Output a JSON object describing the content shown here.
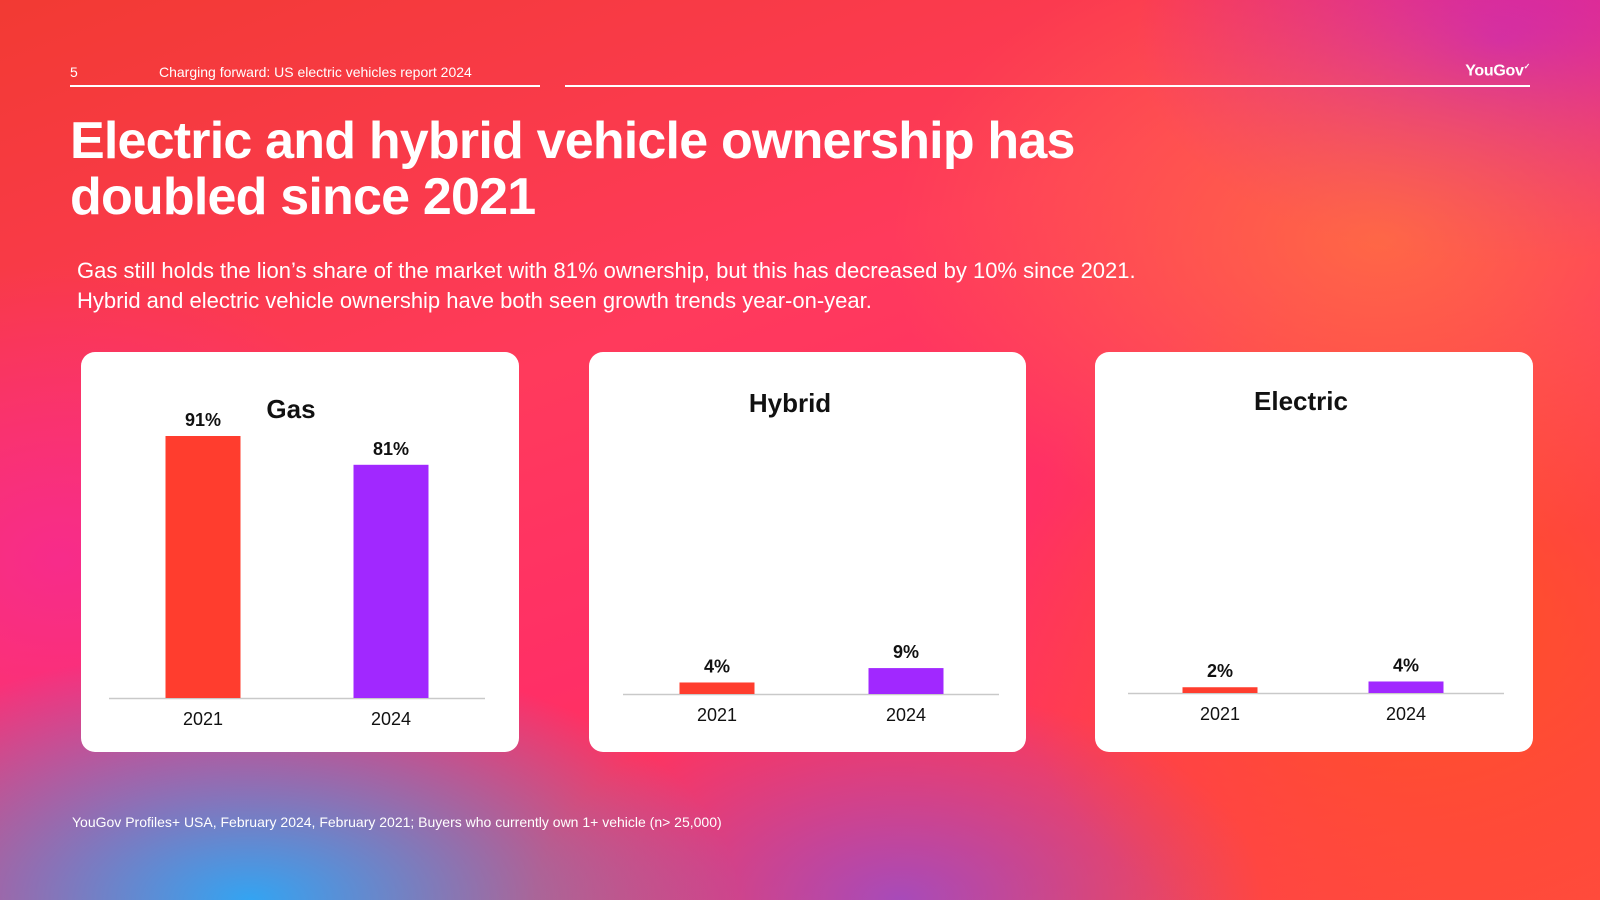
{
  "header": {
    "page_number": "5",
    "report_title": "Charging forward: US electric vehicles report 2024",
    "logo": "YouGov"
  },
  "headline": "Electric and hybrid vehicle ownership has doubled since 2021",
  "subtitle_lines": [
    "Gas still holds the lion’s share of the market with 81% ownership, but this has decreased by 10% since 2021.",
    "Hybrid and electric vehicle ownership have both seen growth trends year-on-year."
  ],
  "source": "YouGov Profiles+ USA, February 2024, February 2021; Buyers who currently own 1+ vehicle (n> 25,000)",
  "colors": {
    "bar_2021": "#ff3d2e",
    "bar_2024": "#a128ff"
  },
  "chart_data": [
    {
      "type": "bar",
      "title": "Gas",
      "categories": [
        "2021",
        "2024"
      ],
      "values": [
        91,
        81
      ],
      "value_labels": [
        "91%",
        "81%"
      ],
      "ylim": [
        0,
        91
      ],
      "grid": false
    },
    {
      "type": "bar",
      "title": "Hybrid",
      "categories": [
        "2021",
        "2024"
      ],
      "values": [
        4,
        9
      ],
      "value_labels": [
        "4%",
        "9%"
      ],
      "ylim": [
        0,
        91
      ],
      "grid": false
    },
    {
      "type": "bar",
      "title": "Electric",
      "categories": [
        "2021",
        "2024"
      ],
      "values": [
        2,
        4
      ],
      "value_labels": [
        "2%",
        "4%"
      ],
      "ylim": [
        0,
        91
      ],
      "grid": false
    }
  ]
}
